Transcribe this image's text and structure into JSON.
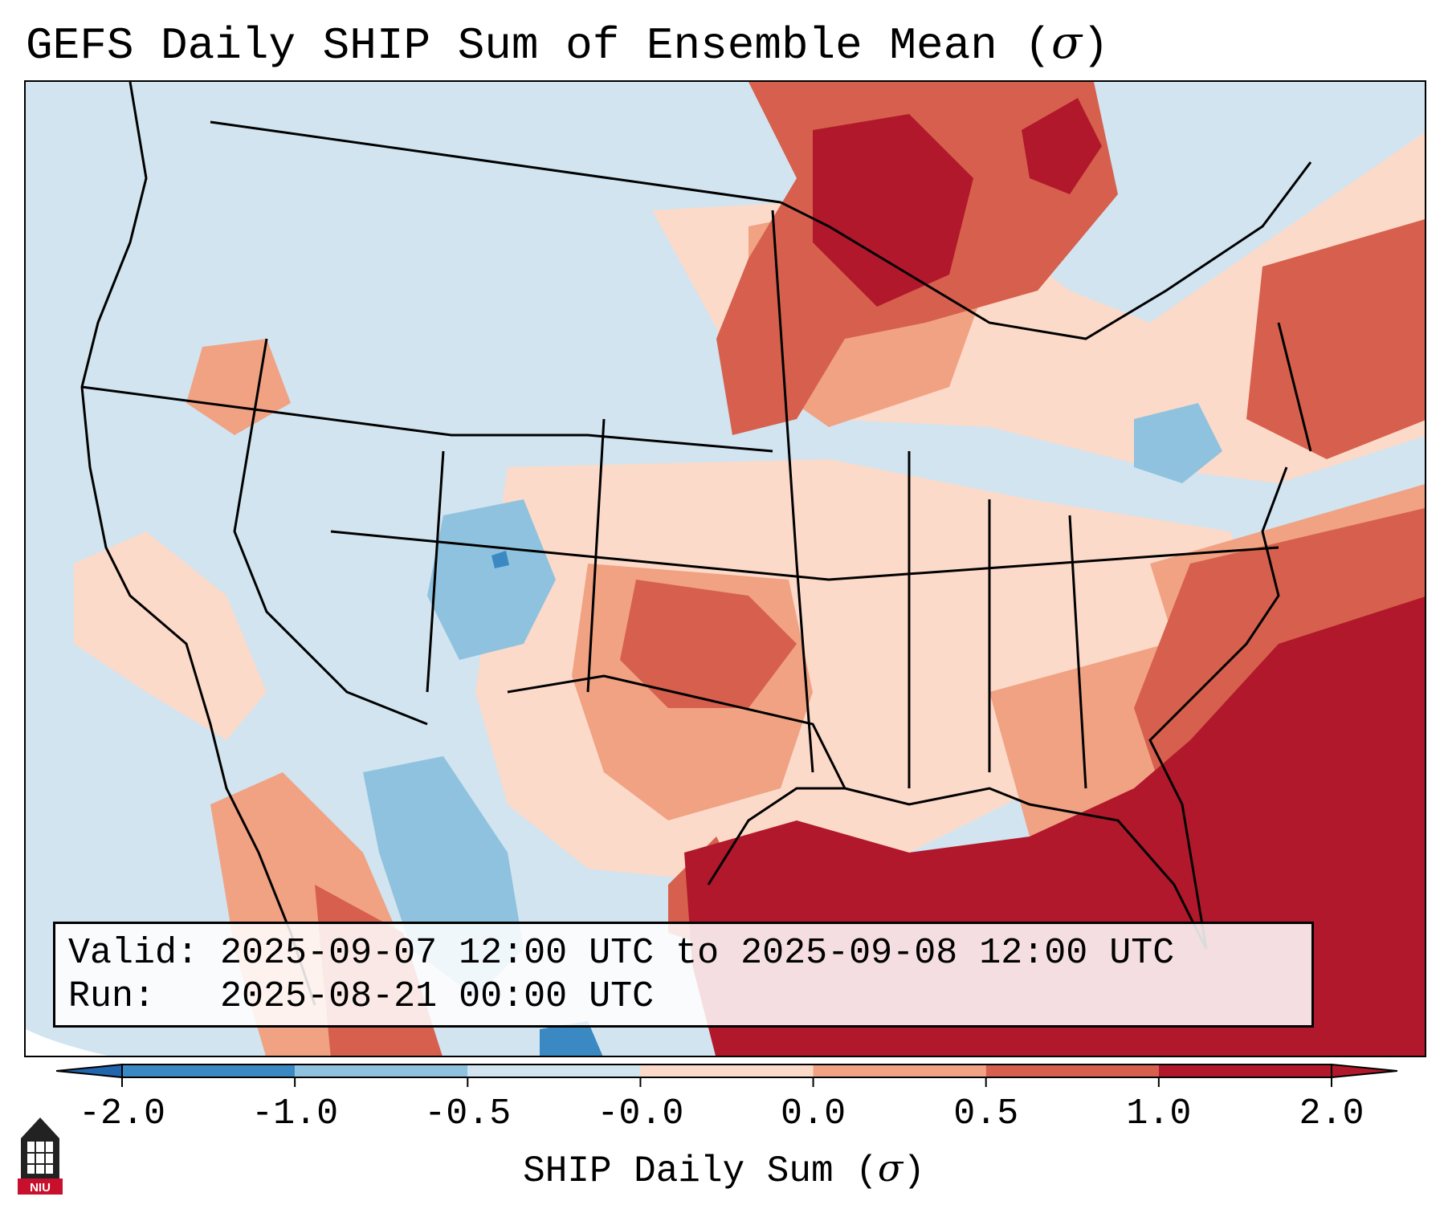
{
  "title": "GEFS Daily SHIP Sum of Ensemble Mean (",
  "title_symbol": "σ",
  "title_close": ")",
  "info": {
    "valid_label": "Valid:",
    "valid_value": "2025-09-07 12:00 UTC to 2025-09-08 12:00 UTC",
    "run_label": "Run:",
    "run_value": "2025-08-21 00:00 UTC"
  },
  "colorbar": {
    "label": "SHIP Daily Sum (",
    "label_symbol": "σ",
    "label_close": ")",
    "ticks": [
      "-2.0",
      "-1.0",
      "-0.5",
      "-0.0",
      "0.0",
      "0.5",
      "1.0",
      "2.0"
    ],
    "colors": [
      "#3a89c2",
      "#8fc2de",
      "#d1e4f0",
      "#f7f7f7",
      "#fcdac9",
      "#f0a283",
      "#d6604d",
      "#b2182b"
    ],
    "extend_low_color": "#2166ac",
    "extend_high_color": "#b2182b"
  },
  "map": {
    "ocean_color": "#d1e4f0",
    "regions": [
      {
        "name": "pacific-ocean",
        "class": "-0.5 to -0.0"
      },
      {
        "name": "western-us",
        "class": "-0.5 to -0.0"
      },
      {
        "name": "colorado",
        "class": "-1.0 to -0.5"
      },
      {
        "name": "southern-plains",
        "class": "0.5 to 1.0"
      },
      {
        "name": "upper-midwest",
        "class": "1.0 to 2.0"
      },
      {
        "name": "ontario-quebec",
        "class": "1.0 to 2.0"
      },
      {
        "name": "gulf-of-mexico",
        "class": "> 2.0"
      },
      {
        "name": "western-atlantic",
        "class": "1.0 to 2.0"
      },
      {
        "name": "northeast-us",
        "class": "-0.5 to -0.0"
      },
      {
        "name": "southeast-us",
        "class": "0.5 to 1.0"
      }
    ]
  },
  "logo": {
    "text": "NIU",
    "accent": "#c8102e"
  }
}
